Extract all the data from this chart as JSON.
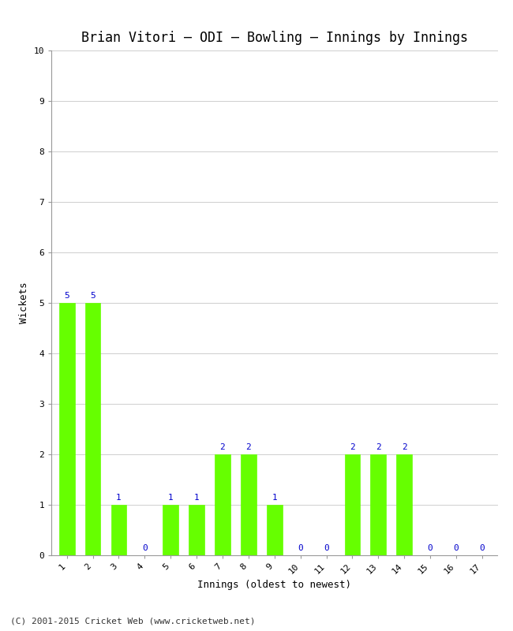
{
  "title": "Brian Vitori – ODI – Bowling – Innings by Innings",
  "xlabel": "Innings (oldest to newest)",
  "ylabel": "Wickets",
  "categories": [
    "1",
    "2",
    "3",
    "4",
    "5",
    "6",
    "7",
    "8",
    "9",
    "10",
    "11",
    "12",
    "13",
    "14",
    "15",
    "16",
    "17"
  ],
  "values": [
    5,
    5,
    1,
    0,
    1,
    1,
    2,
    2,
    1,
    0,
    0,
    2,
    2,
    2,
    0,
    0,
    0
  ],
  "bar_color": "#66ff00",
  "bar_edge_color": "#66ff00",
  "label_color": "#0000cc",
  "ylim": [
    0,
    10
  ],
  "yticks": [
    0,
    1,
    2,
    3,
    4,
    5,
    6,
    7,
    8,
    9,
    10
  ],
  "background_color": "#ffffff",
  "grid_color": "#bbbbbb",
  "title_fontsize": 12,
  "axis_label_fontsize": 9,
  "tick_fontsize": 8,
  "bar_label_fontsize": 8,
  "footer": "(C) 2001-2015 Cricket Web (www.cricketweb.net)",
  "bar_width": 0.6
}
